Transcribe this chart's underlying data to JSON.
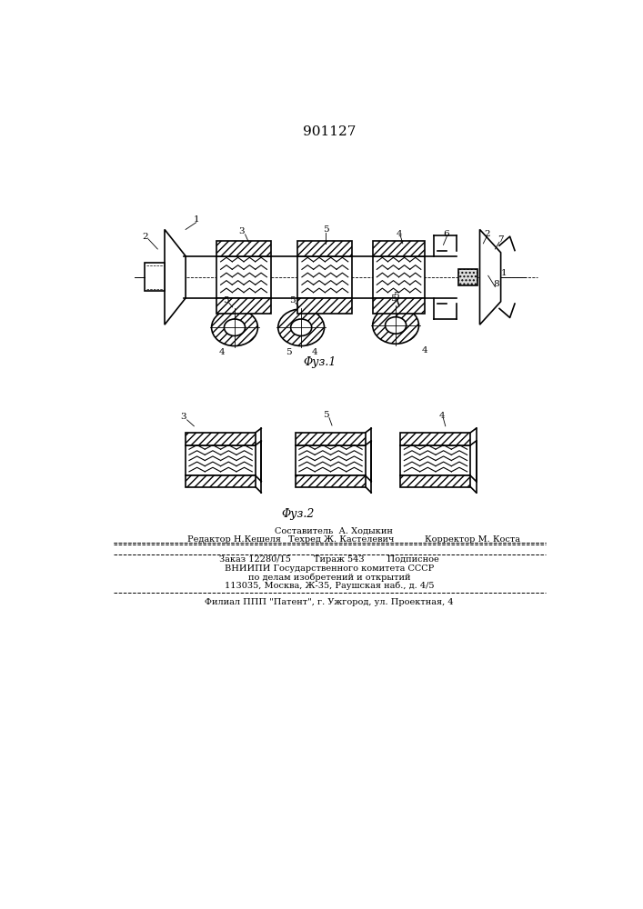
{
  "patent_number": "901127",
  "fig1_label": "Φуз.1",
  "fig2_label": "Φуз.2",
  "background_color": "#ffffff",
  "line_color": "#000000",
  "footer_sestavitel": "Составитель  А. Ходыкин",
  "footer_redaktor": "Редактор Н.Кешеля",
  "footer_tehred": "Техред Ж. Кастелевич",
  "footer_korrektor": "Корректор М. Коста",
  "footer_zakaz": "Заказ 12280/15        Тираж 543        Подписное",
  "footer_vniip": "ВНИИПИ Государственного комитета СССР",
  "footer_dela": "по делам изобретений и открытий",
  "footer_addr": "113035, Москва, Ж-35, Раушская наб., д. 4/5",
  "footer_filial": "Филиал ППП \"Патент\", г. Ужгород, ул. Проектная, 4"
}
